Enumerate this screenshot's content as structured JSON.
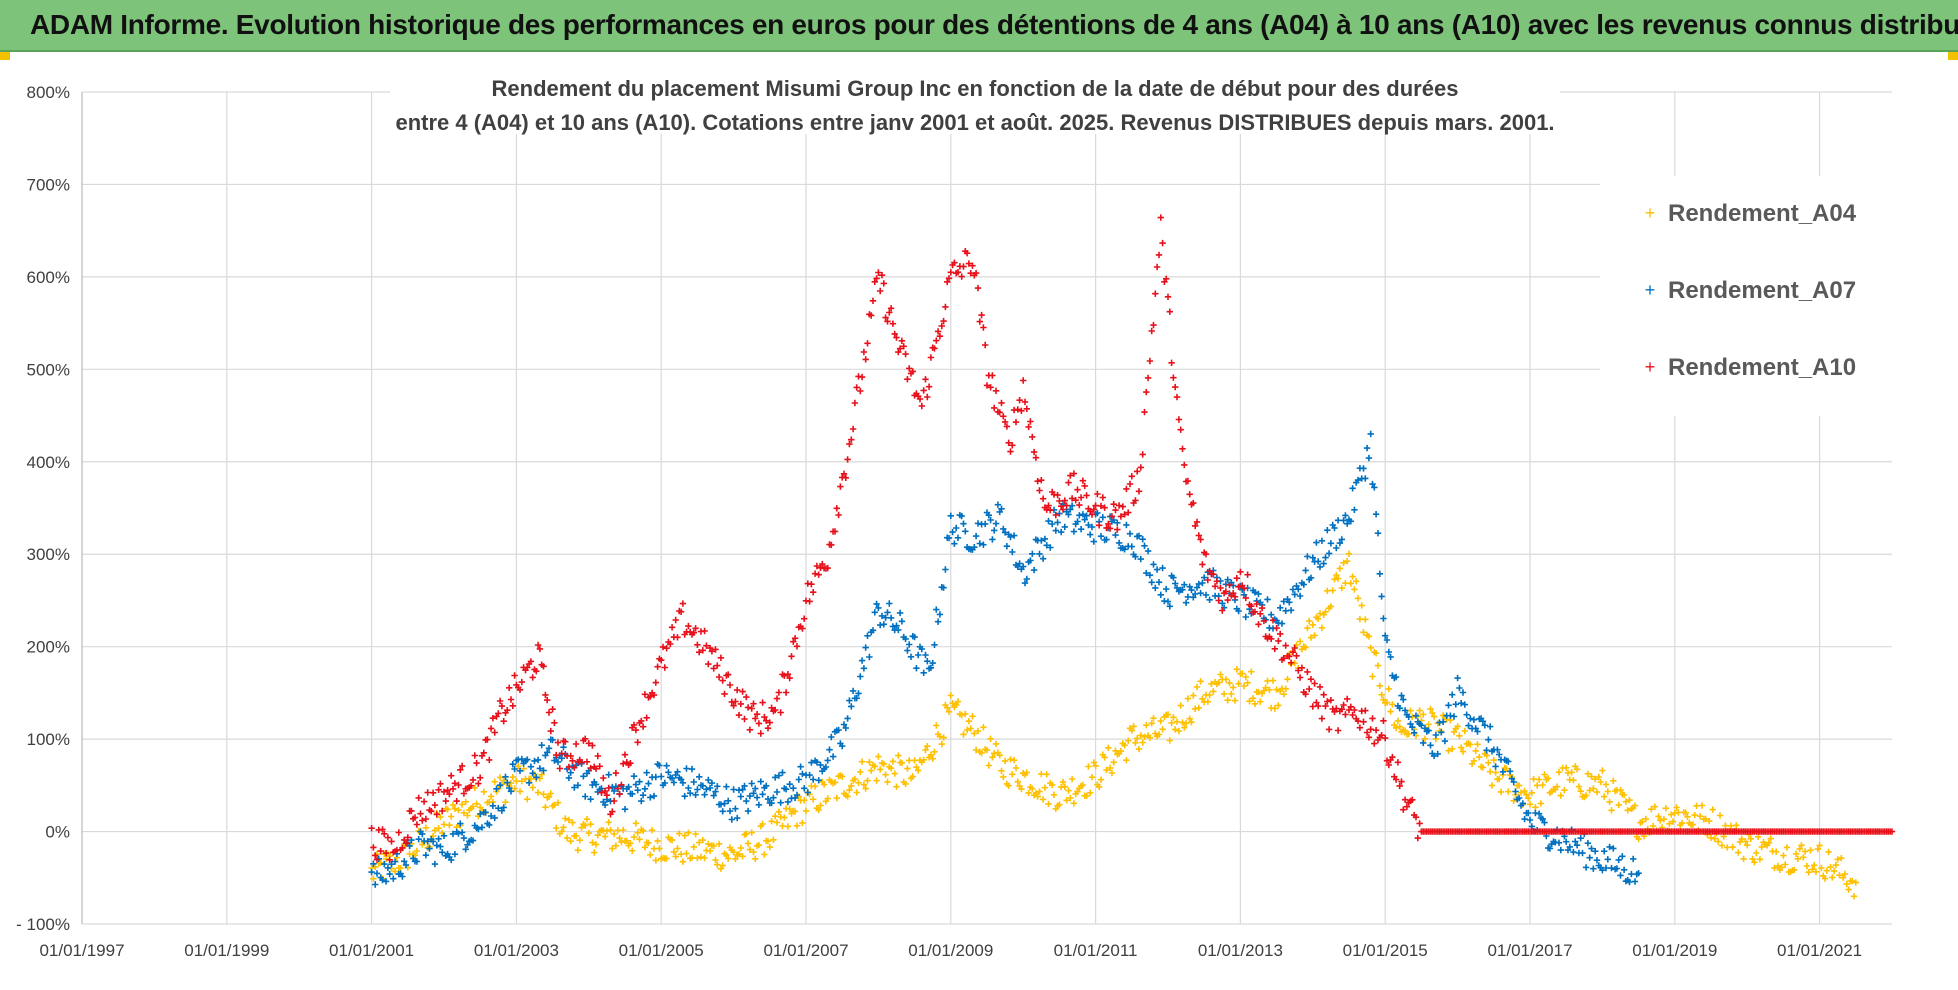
{
  "banner": {
    "title": "ADAM Informe. Evolution historique des performances en euros pour des détentions de 4 ans (A04) à 10 ans (A10) avec les revenus connus distribués"
  },
  "colors": {
    "banner_bg": "#7dc47a",
    "a04": "#ffc000",
    "a07": "#0070c0",
    "a10": "#e8101a",
    "grid": "#d9d9d9"
  },
  "chart_data": {
    "type": "scatter",
    "title_line1": "Rendement du placement Misumi Group Inc en fonction de la date de début pour des durées",
    "title_line2": "entre 4 (A04) et 10 ans (A10). Cotations entre janv 2001 et août. 2025. Revenus DISTRIBUES depuis mars. 2001.",
    "ylim": [
      -100,
      800
    ],
    "y_ticks": [
      "- 100%",
      "0%",
      "100%",
      "200%",
      "300%",
      "400%",
      "500%",
      "600%",
      "700%",
      "800%"
    ],
    "xlim": [
      1997.0,
      2022.0
    ],
    "x_ticks": [
      "01/01/1997",
      "01/01/1999",
      "01/01/2001",
      "01/01/2003",
      "01/01/2005",
      "01/01/2007",
      "01/01/2009",
      "01/01/2011",
      "01/01/2013",
      "01/01/2015",
      "01/01/2017",
      "01/01/2019",
      "01/01/2021"
    ],
    "legend_position": "right",
    "grid": true,
    "series": [
      {
        "name": "Rendement_A04",
        "color": "#ffc000",
        "x": [
          2001.0,
          2001.5,
          2002.0,
          2002.5,
          2003.0,
          2003.3,
          2003.7,
          2004.0,
          2004.5,
          2005.0,
          2005.5,
          2006.0,
          2006.5,
          2007.0,
          2007.5,
          2008.0,
          2008.5,
          2009.0,
          2009.3,
          2009.7,
          2010.0,
          2010.5,
          2011.0,
          2011.5,
          2012.0,
          2012.5,
          2013.0,
          2013.5,
          2014.0,
          2014.5,
          2014.8,
          2015.2,
          2015.5,
          2016.0,
          2016.5,
          2017.0,
          2017.5,
          2018.0,
          2018.5,
          2019.0,
          2019.5,
          2020.0,
          2020.5,
          2021.0,
          2021.5
        ],
        "y": [
          -45,
          -25,
          10,
          35,
          55,
          50,
          0,
          -5,
          -5,
          -15,
          -20,
          -25,
          -5,
          30,
          50,
          70,
          60,
          130,
          110,
          70,
          60,
          40,
          60,
          100,
          110,
          150,
          160,
          150,
          220,
          290,
          190,
          110,
          120,
          100,
          60,
          40,
          55,
          50,
          10,
          20,
          10,
          -15,
          -25,
          -30,
          -55
        ]
      },
      {
        "name": "Rendement_A07",
        "color": "#0070c0",
        "x": [
          2001.0,
          2001.3,
          2001.7,
          2002.0,
          2002.5,
          2003.0,
          2003.5,
          2004.0,
          2004.5,
          2005.0,
          2005.5,
          2006.0,
          2006.5,
          2007.0,
          2007.5,
          2008.0,
          2008.3,
          2008.7,
          2009.0,
          2009.3,
          2009.7,
          2010.0,
          2010.5,
          2011.0,
          2011.5,
          2012.0,
          2012.5,
          2013.0,
          2013.5,
          2014.0,
          2014.5,
          2014.8,
          2015.0,
          2015.3,
          2015.7,
          2016.0,
          2016.5,
          2017.0,
          2017.5,
          2018.0,
          2018.5
        ],
        "y": [
          -50,
          -40,
          -15,
          -20,
          10,
          60,
          85,
          50,
          40,
          60,
          50,
          30,
          45,
          55,
          100,
          240,
          220,
          170,
          330,
          320,
          340,
          280,
          340,
          330,
          320,
          260,
          270,
          250,
          230,
          290,
          340,
          420,
          200,
          120,
          90,
          150,
          90,
          10,
          -10,
          -30,
          -45
        ]
      },
      {
        "name": "Rendement_A10",
        "color": "#e8101a",
        "x": [
          2001.0,
          2001.3,
          2001.6,
          2002.0,
          2002.5,
          2002.8,
          2003.3,
          2003.6,
          2004.0,
          2004.3,
          2004.7,
          2005.0,
          2005.3,
          2005.6,
          2006.0,
          2006.3,
          2006.6,
          2007.0,
          2007.3,
          2007.6,
          2008.0,
          2008.3,
          2008.6,
          2009.0,
          2009.3,
          2009.5,
          2009.8,
          2010.0,
          2010.3,
          2010.7,
          2011.0,
          2011.3,
          2011.6,
          2011.9,
          2012.2,
          2012.5,
          2012.8,
          2013.0,
          2013.3,
          2013.6,
          2014.0,
          2014.3,
          2014.6,
          2015.0,
          2015.3,
          2015.5,
          2016.0,
          2017.0,
          2018.0,
          2019.0,
          2020.0,
          2021.0,
          2022.0
        ],
        "y": [
          -10,
          -20,
          20,
          40,
          70,
          130,
          190,
          80,
          90,
          30,
          120,
          180,
          230,
          200,
          150,
          120,
          130,
          250,
          300,
          420,
          600,
          520,
          460,
          600,
          620,
          500,
          420,
          480,
          350,
          370,
          350,
          340,
          380,
          650,
          400,
          290,
          250,
          280,
          230,
          200,
          150,
          120,
          130,
          100,
          30,
          0,
          0,
          0,
          0,
          0,
          0,
          0,
          0
        ]
      }
    ]
  }
}
